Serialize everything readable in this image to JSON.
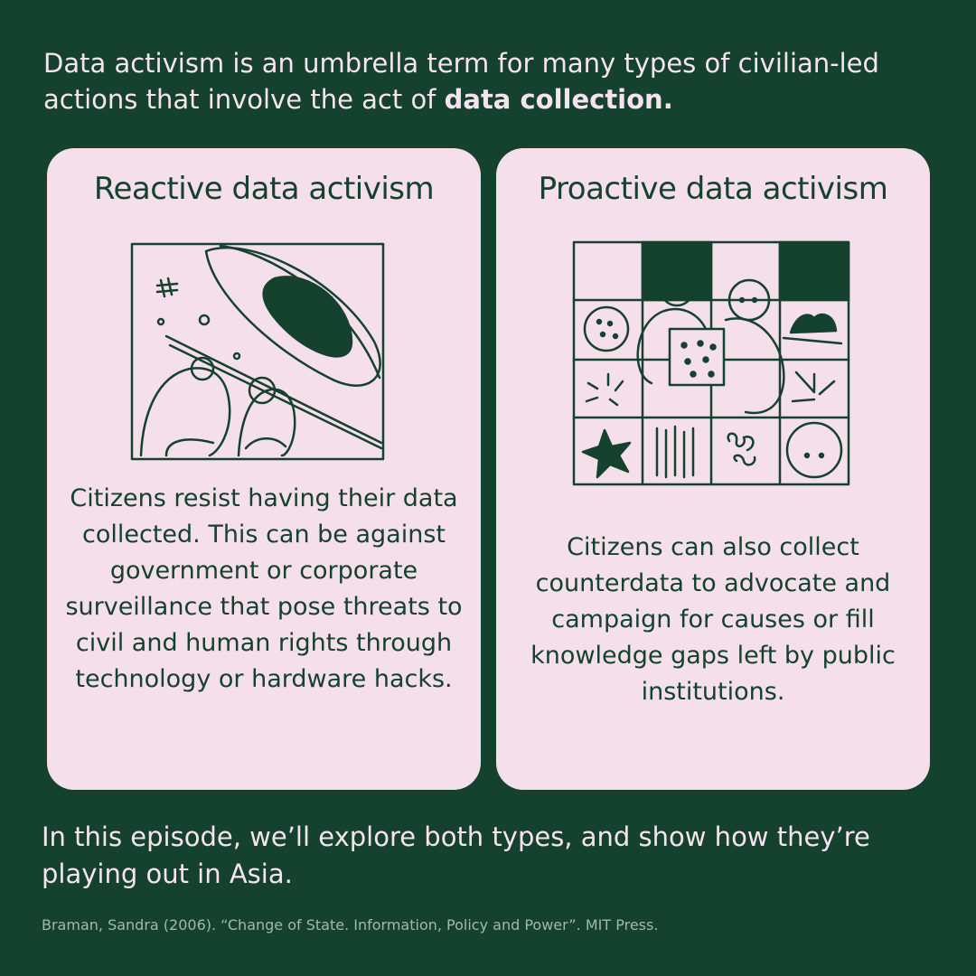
{
  "intro": {
    "text_prefix": "Data activism is an umbrella term for many types of civilian-led actions that involve the act of ",
    "text_bold": "data collection."
  },
  "cards": [
    {
      "title": "Reactive data activism",
      "body": "Citizens resist having their data collected. This can be against government or corporate surveillance that pose threats to civil and human rights through technology or hardware hacks."
    },
    {
      "title": "Proactive data activism",
      "body": "Citizens can also collect counterdata to advocate and campaign for causes or fill knowledge gaps left by public institutions."
    }
  ],
  "outro": "In this episode, we’ll explore both types, and show how they’re playing out in Asia.",
  "citation": "Braman, Sandra (2006). “Change of State. Information, Policy and Power”. MIT Press.",
  "colors": {
    "background": "#15412f",
    "card": "#f5dfeb",
    "ink": "#15412f"
  }
}
